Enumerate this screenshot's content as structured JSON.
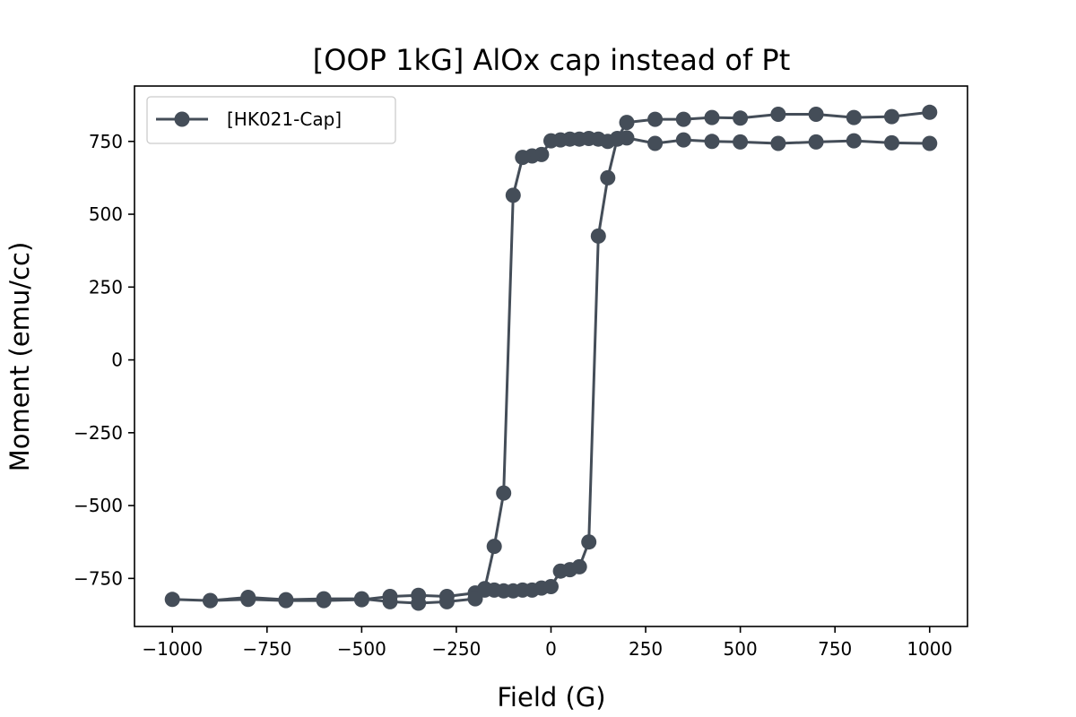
{
  "chart_data": {
    "type": "line",
    "title": "[OOP 1kG] AlOx cap instead of Pt",
    "xlabel": "Field (G)",
    "ylabel": "Moment (emu/cc)",
    "xlim": [
      -1100,
      1100
    ],
    "ylim": [
      -915,
      940
    ],
    "xticks": [
      -1000,
      -750,
      -500,
      -250,
      0,
      250,
      500,
      750,
      1000
    ],
    "xtick_labels": [
      "−1000",
      "−750",
      "−500",
      "−250",
      "0",
      "250",
      "500",
      "750",
      "1000"
    ],
    "yticks": [
      -750,
      -500,
      -250,
      0,
      250,
      500,
      750
    ],
    "ytick_labels": [
      "−750",
      "−500",
      "−250",
      "0",
      "250",
      "500",
      "750"
    ],
    "grid": false,
    "legend": "top-left",
    "color": "#444d58",
    "series": [
      {
        "name": "[HK021-Cap]",
        "x": [
          1000,
          900,
          800,
          700,
          600,
          500,
          425,
          350,
          275,
          200,
          175,
          150,
          125,
          100,
          75,
          50,
          25,
          0,
          -25,
          -50,
          -75,
          -100,
          -125,
          -150,
          -175,
          -200,
          -275,
          -350,
          -425,
          -500,
          -600,
          -700,
          -800,
          -900,
          -1000,
          -900,
          -800,
          -700,
          -600,
          -500,
          -425,
          -350,
          -275,
          -200,
          -175,
          -150,
          -125,
          -100,
          -75,
          -50,
          -25,
          0,
          25,
          50,
          75,
          100,
          125,
          150,
          175,
          200,
          275,
          350,
          425,
          500,
          600,
          700,
          800,
          900,
          1000
        ],
        "y": [
          743,
          745,
          752,
          748,
          743,
          748,
          750,
          755,
          743,
          762,
          758,
          750,
          758,
          760,
          758,
          758,
          755,
          752,
          705,
          700,
          695,
          565,
          -457,
          -640,
          -785,
          -800,
          -812,
          -808,
          -812,
          -823,
          -826,
          -826,
          -822,
          -826,
          -822,
          -826,
          -815,
          -823,
          -820,
          -820,
          -830,
          -835,
          -830,
          -820,
          -790,
          -790,
          -793,
          -793,
          -790,
          -790,
          -783,
          -778,
          -725,
          -720,
          -710,
          -625,
          425,
          625,
          760,
          815,
          826,
          826,
          832,
          830,
          843,
          843,
          832,
          835,
          850
        ]
      }
    ]
  }
}
